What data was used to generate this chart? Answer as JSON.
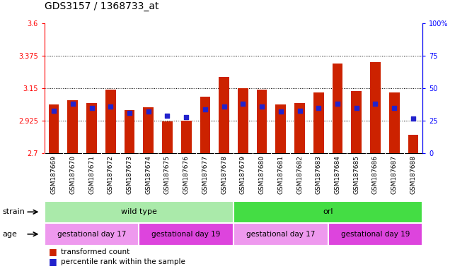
{
  "title": "GDS3157 / 1368733_at",
  "samples": [
    "GSM187669",
    "GSM187670",
    "GSM187671",
    "GSM187672",
    "GSM187673",
    "GSM187674",
    "GSM187675",
    "GSM187676",
    "GSM187677",
    "GSM187678",
    "GSM187679",
    "GSM187680",
    "GSM187681",
    "GSM187682",
    "GSM187683",
    "GSM187684",
    "GSM187685",
    "GSM187686",
    "GSM187687",
    "GSM187688"
  ],
  "transformed_count": [
    3.04,
    3.07,
    3.05,
    3.14,
    3.0,
    3.02,
    2.92,
    2.925,
    3.09,
    3.23,
    3.15,
    3.14,
    3.04,
    3.05,
    3.12,
    3.32,
    3.13,
    3.33,
    3.12,
    2.83
  ],
  "percentile_rank": [
    33,
    38,
    35,
    36,
    31,
    32,
    29,
    28,
    34,
    36,
    38,
    36,
    32,
    33,
    35,
    38,
    35,
    38,
    35,
    27
  ],
  "ylim": [
    2.7,
    3.6
  ],
  "y_left_ticks": [
    2.7,
    2.925,
    3.15,
    3.375,
    3.6
  ],
  "y_left_labels": [
    "2.7",
    "2.925",
    "3.15",
    "3.375",
    "3.6"
  ],
  "y_right_ticks": [
    0,
    25,
    50,
    75,
    100
  ],
  "y_right_labels": [
    "0",
    "25",
    "50",
    "75",
    "100%"
  ],
  "dotted_lines": [
    2.925,
    3.15,
    3.375
  ],
  "bar_color": "#cc2200",
  "dot_color": "#2222cc",
  "bar_bottom": 2.7,
  "strain_groups": [
    {
      "label": "wild type",
      "start": 0,
      "end": 10,
      "color": "#aaeaaa"
    },
    {
      "label": "orl",
      "start": 10,
      "end": 20,
      "color": "#44dd44"
    }
  ],
  "age_groups": [
    {
      "label": "gestational day 17",
      "start": 0,
      "end": 5,
      "color": "#ee99ee"
    },
    {
      "label": "gestational day 19",
      "start": 5,
      "end": 10,
      "color": "#dd44dd"
    },
    {
      "label": "gestational day 17",
      "start": 10,
      "end": 15,
      "color": "#ee99ee"
    },
    {
      "label": "gestational day 19",
      "start": 15,
      "end": 20,
      "color": "#dd44dd"
    }
  ],
  "legend_red_label": "transformed count",
  "legend_blue_label": "percentile rank within the sample",
  "tick_fontsize": 7,
  "bar_width": 0.55,
  "xtick_bg": "#d8d8d8"
}
